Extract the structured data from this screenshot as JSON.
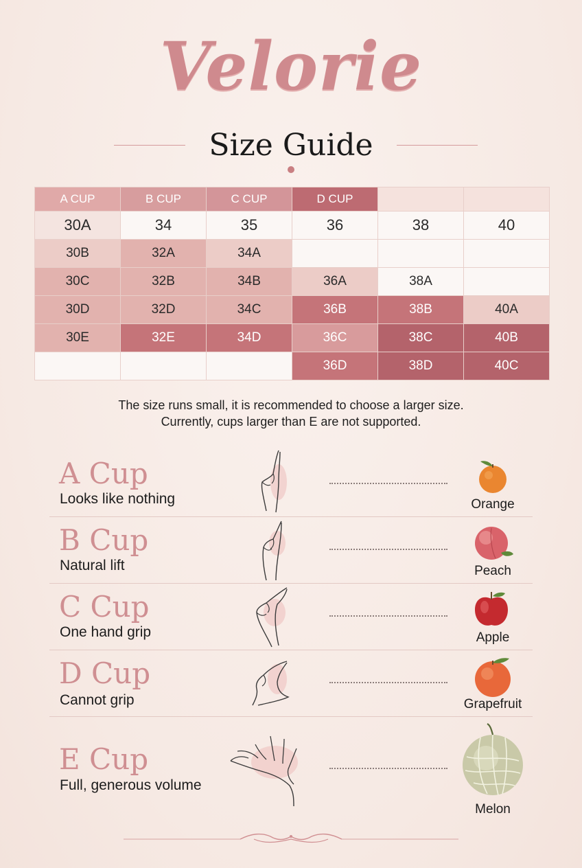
{
  "brand": "Velorie",
  "title": "Size Guide",
  "table": {
    "header": [
      "A CUP",
      "B CUP",
      "C CUP",
      "D CUP",
      "",
      ""
    ],
    "rows": [
      [
        "30A",
        "34",
        "35",
        "36",
        "38",
        "40"
      ],
      [
        "30B",
        "32A",
        "34A",
        "",
        "",
        ""
      ],
      [
        "30C",
        "32B",
        "34B",
        "36A",
        "38A",
        ""
      ],
      [
        "30D",
        "32D",
        "34C",
        "36B",
        "38B",
        "40A"
      ],
      [
        "30E",
        "32E",
        "34D",
        "36C",
        "38C",
        "40B"
      ],
      [
        "",
        "",
        "",
        "36D",
        "38D",
        "40C"
      ]
    ]
  },
  "notes": [
    "The size runs small, it is recommended to choose a larger size.",
    "Currently, cups larger than E are not supported."
  ],
  "cups": [
    {
      "name": "A Cup",
      "desc": "Looks like nothing",
      "fruit": "Orange",
      "fruit_icon": "orange-icon",
      "hand_icon": "flat-hand-icon"
    },
    {
      "name": "B Cup",
      "desc": "Natural lift",
      "fruit": "Peach",
      "fruit_icon": "peach-icon",
      "hand_icon": "cupped-hand-icon"
    },
    {
      "name": "C Cup",
      "desc": "One hand grip",
      "fruit": "Apple",
      "fruit_icon": "apple-icon",
      "hand_icon": "grip-hand-icon"
    },
    {
      "name": "D Cup",
      "desc": "Cannot grip",
      "fruit": "Grapefruit",
      "fruit_icon": "grapefruit-icon",
      "hand_icon": "wide-hand-icon"
    },
    {
      "name": "E Cup",
      "desc": "Full, generous volume",
      "fruit": "Melon",
      "fruit_icon": "melon-icon",
      "hand_icon": "open-hand-icon"
    }
  ],
  "colors": {
    "accent": "#cf8a8e",
    "background": "#f8ece7",
    "table_dark": "#b4636b"
  }
}
